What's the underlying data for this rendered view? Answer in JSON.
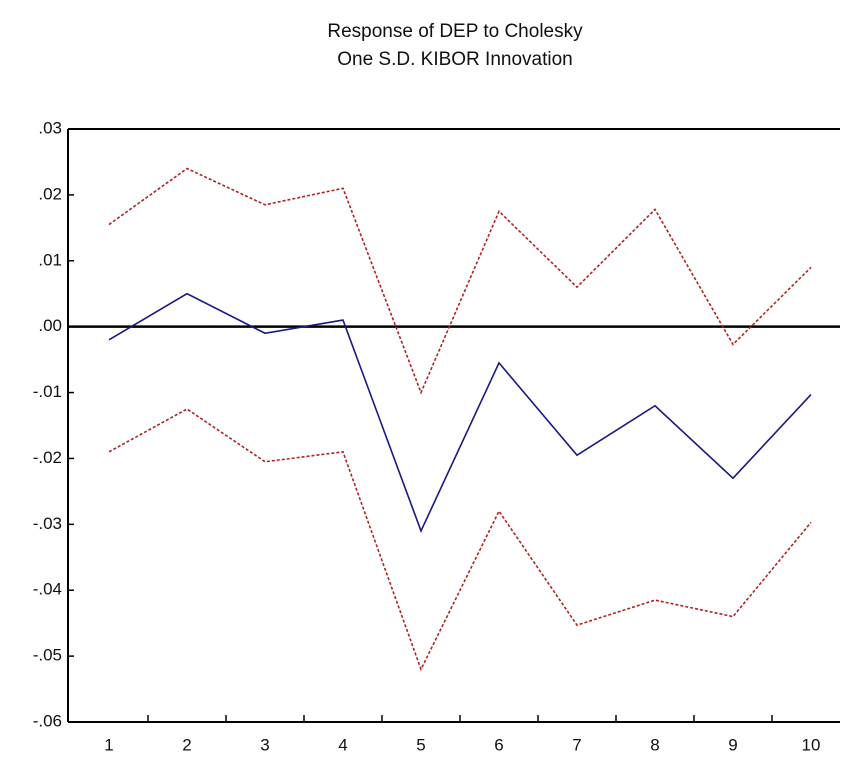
{
  "chart_data": {
    "type": "line",
    "title": [
      "Response of DEP to Cholesky",
      "One S.D. KIBOR Innovation"
    ],
    "categories": [
      "1",
      "2",
      "3",
      "4",
      "5",
      "6",
      "7",
      "8",
      "9",
      "10"
    ],
    "series": [
      {
        "color": "#1a1a80",
        "dashed": false,
        "values": [
          -0.002,
          0.005,
          -0.001,
          0.001,
          -0.031,
          -0.0055,
          -0.0195,
          -0.012,
          -0.023,
          -0.0103
        ]
      },
      {
        "color": "#b22222",
        "dashed": true,
        "values": [
          0.0155,
          0.024,
          0.0185,
          0.021,
          -0.01,
          0.0175,
          0.006,
          0.0178,
          -0.0027,
          0.009
        ]
      },
      {
        "color": "#b22222",
        "dashed": true,
        "values": [
          -0.019,
          -0.0125,
          -0.0205,
          -0.019,
          -0.052,
          -0.028,
          -0.0453,
          -0.0415,
          -0.044,
          -0.0297
        ]
      }
    ],
    "ylim": [
      -0.06,
      0.03
    ],
    "yticks": [
      {
        "value": 0.03,
        "label": ".03"
      },
      {
        "value": 0.02,
        "label": ".02"
      },
      {
        "value": 0.01,
        "label": ".01"
      },
      {
        "value": 0,
        "label": ".00"
      },
      {
        "value": -0.01,
        "label": "-.01"
      },
      {
        "value": -0.02,
        "label": "-.02"
      },
      {
        "value": -0.03,
        "label": "-.03"
      },
      {
        "value": -0.04,
        "label": "-.04"
      },
      {
        "value": -0.05,
        "label": "-.05"
      },
      {
        "value": -0.06,
        "label": "-.06"
      }
    ],
    "zero_line": true,
    "grid": false
  }
}
